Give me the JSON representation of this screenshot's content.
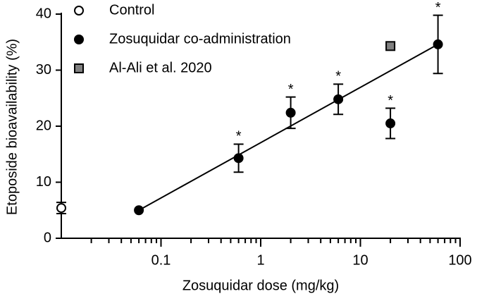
{
  "chart_data": {
    "type": "scatter",
    "xlabel": "Zosuquidar dose (mg/kg)",
    "ylabel": "Etoposide bioavailability (%)",
    "xscale": "log",
    "xlim": [
      0.01,
      100
    ],
    "ylim": [
      0,
      40
    ],
    "xticks": [
      0.1,
      1,
      10,
      100
    ],
    "xminorticks": [
      0.02,
      0.03,
      0.04,
      0.05,
      0.06,
      0.07,
      0.08,
      0.09,
      0.2,
      0.3,
      0.4,
      0.5,
      0.6,
      0.7,
      0.8,
      0.9,
      2,
      3,
      4,
      5,
      6,
      7,
      8,
      9,
      20,
      30,
      40,
      50,
      60,
      70,
      80,
      90
    ],
    "yticks": [
      0,
      10,
      20,
      30,
      40
    ],
    "legend": "upper left",
    "series": [
      {
        "name": "Control",
        "color": "#ffffff",
        "marker": "circle",
        "x": [
          0.01
        ],
        "values": [
          5.4
        ],
        "errors": [
          1.0
        ]
      },
      {
        "name": "Zosuquidar co-administration",
        "color": "#000000",
        "marker": "circle",
        "x": [
          0.06,
          0.6,
          2,
          6,
          20,
          60
        ],
        "values": [
          5.0,
          14.3,
          22.4,
          24.8,
          20.5,
          34.6
        ],
        "errors": [
          null,
          2.5,
          2.8,
          2.7,
          2.7,
          5.2
        ],
        "significance_labels": [
          null,
          "*",
          "*",
          "*",
          "*",
          "*"
        ]
      },
      {
        "name": "Al-Ali et al. 2020",
        "color": "#808080",
        "marker": "square",
        "x": [
          20
        ],
        "values": [
          34.3
        ]
      }
    ],
    "fit": {
      "intercept": 17.06,
      "slope": 9.87,
      "xrange": [
        0.06,
        60
      ]
    }
  }
}
